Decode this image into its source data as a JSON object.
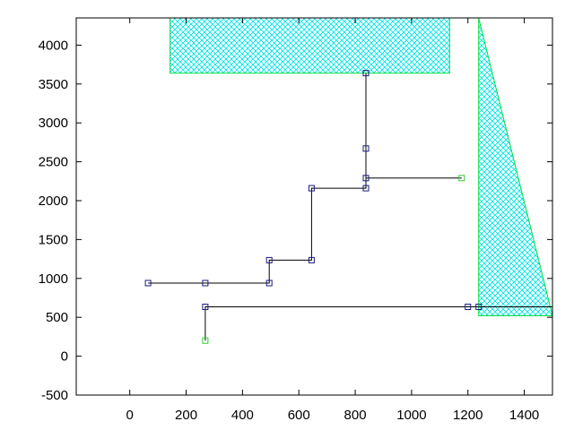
{
  "chart_data": {
    "type": "line",
    "title": "",
    "xlabel": "",
    "ylabel": "",
    "xlim": [
      -190,
      1500
    ],
    "ylim": [
      -500,
      4350
    ],
    "xticks": [
      0,
      200,
      400,
      600,
      800,
      1000,
      1200,
      1400
    ],
    "xtick_labels": [
      "0",
      "200",
      "400",
      "600",
      "800",
      "1000",
      "1200",
      "1400"
    ],
    "yticks": [
      -500,
      0,
      500,
      1000,
      1500,
      2000,
      2500,
      3000,
      3500,
      4000
    ],
    "ytick_labels": [
      "-500",
      "0",
      "500",
      "1000",
      "1500",
      "2000",
      "2500",
      "3000",
      "3500",
      "4000"
    ],
    "grid": false,
    "colors": {
      "line": "#000000",
      "marker": "#1a1a80",
      "endpoint_marker": "#33cc33",
      "region_edge": "#00dd44",
      "region_hatch": "#00e5e5"
    },
    "regions": [
      {
        "shape": "rectangle",
        "points": [
          [
            143,
            3640
          ],
          [
            1135,
            3640
          ],
          [
            1135,
            4350
          ],
          [
            143,
            4350
          ]
        ]
      },
      {
        "shape": "polygon",
        "points": [
          [
            1238,
            520
          ],
          [
            1238,
            4350
          ],
          [
            1500,
            520
          ]
        ]
      }
    ],
    "series": [
      {
        "path": [
          [
            268,
            200
          ],
          [
            268,
            635
          ],
          [
            1200,
            635
          ],
          [
            1238,
            635
          ],
          [
            1500,
            635
          ]
        ]
      },
      {
        "path": [
          [
            65,
            940
          ],
          [
            268,
            940
          ],
          [
            495,
            940
          ],
          [
            495,
            1235
          ],
          [
            645,
            1235
          ],
          [
            645,
            2160
          ],
          [
            838,
            2160
          ],
          [
            838,
            2290
          ],
          [
            1178,
            2290
          ]
        ]
      },
      {
        "path": [
          [
            838,
            2160
          ],
          [
            838,
            3640
          ]
        ]
      }
    ],
    "markers": [
      {
        "x": 268,
        "y": 200,
        "kind": "endpoint"
      },
      {
        "x": 268,
        "y": 635,
        "kind": "node"
      },
      {
        "x": 1200,
        "y": 635,
        "kind": "node"
      },
      {
        "x": 1238,
        "y": 635,
        "kind": "node"
      },
      {
        "x": 65,
        "y": 940,
        "kind": "node"
      },
      {
        "x": 268,
        "y": 940,
        "kind": "node"
      },
      {
        "x": 495,
        "y": 940,
        "kind": "node"
      },
      {
        "x": 495,
        "y": 1235,
        "kind": "node"
      },
      {
        "x": 645,
        "y": 1235,
        "kind": "node"
      },
      {
        "x": 645,
        "y": 2160,
        "kind": "node"
      },
      {
        "x": 838,
        "y": 2160,
        "kind": "node"
      },
      {
        "x": 838,
        "y": 2290,
        "kind": "node"
      },
      {
        "x": 838,
        "y": 2670,
        "kind": "node"
      },
      {
        "x": 838,
        "y": 3640,
        "kind": "node"
      },
      {
        "x": 1178,
        "y": 2290,
        "kind": "endpoint"
      }
    ]
  }
}
